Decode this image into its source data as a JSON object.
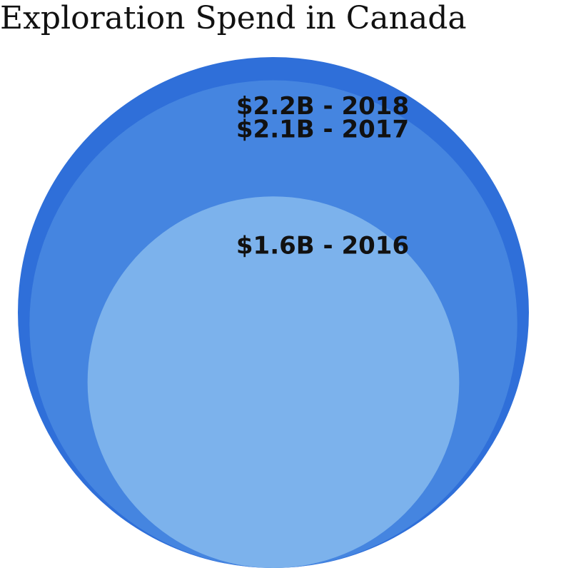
{
  "chart_data": {
    "type": "nested-circles",
    "title": "Exploration Spend in Canada",
    "values": [
      2.2,
      2.1,
      1.6
    ],
    "value_labels": [
      "$2.2B - 2018",
      "$2.1B - 2017",
      "$1.6B - 2016"
    ],
    "colors": [
      "#2f6fd9",
      "#4585e0",
      "#7cb2ec"
    ]
  }
}
